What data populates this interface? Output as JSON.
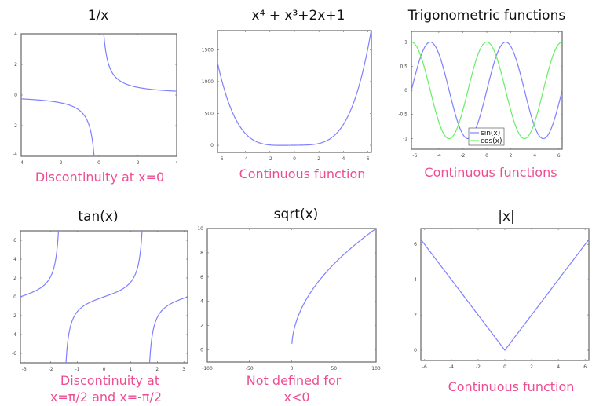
{
  "colors": {
    "sin_line": "#7f7fff",
    "cos_line": "#66ee66",
    "caption": "#ee4d92",
    "axes": "#666666"
  },
  "chart_data": [
    {
      "type": "line",
      "title": "1/x",
      "caption": [
        "Discontinuity at x=0"
      ],
      "xlim": [
        -4,
        4
      ],
      "ylim": [
        -4,
        4
      ],
      "grid": false,
      "xticks": [
        "-4",
        "-2",
        "0",
        "2",
        "4"
      ],
      "yticks": [
        "-4",
        "-2",
        "0",
        "2",
        "4"
      ],
      "series": [
        {
          "expression": "1/x",
          "x_range": [
            -4,
            4
          ],
          "color": "#7f7fff"
        }
      ]
    },
    {
      "type": "line",
      "title": "x⁴ + x³+2x+1",
      "caption": [
        "Continuous function"
      ],
      "xlim": [
        -6.283,
        6.283
      ],
      "ylim": [
        -110,
        1800
      ],
      "grid": false,
      "xticks": [
        "-6",
        "-4",
        "-2",
        "0",
        "2",
        "4",
        "6"
      ],
      "yticks": [
        "0",
        "500",
        "1000",
        "1500"
      ],
      "series": [
        {
          "expression": "x^4+x^3+2x+1",
          "x_range": [
            -6.283,
            6.283
          ],
          "color": "#7f7fff"
        }
      ]
    },
    {
      "type": "line",
      "title": "Trigonometric functions",
      "caption": [
        "Continuous functions"
      ],
      "xlim": [
        -6.283,
        6.283
      ],
      "ylim": [
        -1.22,
        1.22
      ],
      "grid": false,
      "legend": "bottom-center",
      "xticks": [
        "-6",
        "-4",
        "-2",
        "0",
        "2",
        "4",
        "6"
      ],
      "yticks": [
        "-1",
        "-0.5",
        "0",
        "0.5",
        "1"
      ],
      "series": [
        {
          "name": "sin(x)",
          "expression": "sin(x)",
          "x_range": [
            -6.283,
            6.283
          ],
          "color": "#7f7fff"
        },
        {
          "name": "cos(x)",
          "expression": "cos(x)",
          "x_range": [
            -6.283,
            6.283
          ],
          "color": "#66ee66"
        }
      ]
    },
    {
      "type": "line",
      "title": "tan(x)",
      "caption": [
        "Discontinuity at",
        "x=π/2 and x=-π/2"
      ],
      "xlim": [
        -3.1416,
        3.1416
      ],
      "ylim": [
        -7,
        7
      ],
      "grid": false,
      "xticks": [
        "-3",
        "-2",
        "-1",
        "0",
        "1",
        "2",
        "3"
      ],
      "yticks": [
        "-6",
        "-4",
        "-2",
        "0",
        "2",
        "4",
        "6"
      ],
      "series": [
        {
          "expression": "tan(x)",
          "x_range": [
            -3.1416,
            3.1416
          ],
          "color": "#7f7fff"
        }
      ]
    },
    {
      "type": "line",
      "title": "sqrt(x)",
      "caption": [
        "Not defined for",
        "x<0"
      ],
      "xlim": [
        -100,
        100
      ],
      "ylim": [
        -1,
        10
      ],
      "grid": false,
      "xticks": [
        "-100",
        "-50",
        "0",
        "50",
        "100"
      ],
      "yticks": [
        "0",
        "2",
        "4",
        "6",
        "8",
        "10"
      ],
      "series": [
        {
          "expression": "sqrt(x)",
          "x_range": [
            0.25,
            100
          ],
          "color": "#7f7fff"
        }
      ]
    },
    {
      "type": "line",
      "title": "|x|",
      "caption": [
        "Continuous function"
      ],
      "xlim": [
        -6.283,
        6.283
      ],
      "ylim": [
        -0.58,
        6.9
      ],
      "grid": false,
      "xticks": [
        "-6",
        "-4",
        "-2",
        "0",
        "2",
        "4",
        "6"
      ],
      "yticks": [
        "0",
        "2",
        "4",
        "6"
      ],
      "series": [
        {
          "expression": "abs(x)",
          "x_range": [
            -6.283,
            6.283
          ],
          "color": "#7f7fff"
        }
      ]
    }
  ]
}
